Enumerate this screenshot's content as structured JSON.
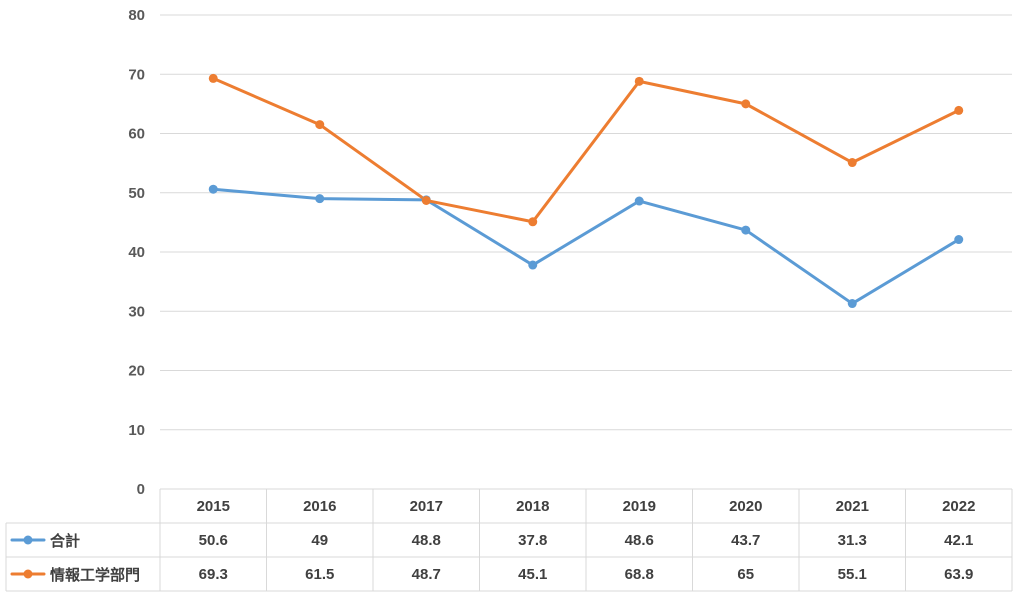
{
  "chart_data": {
    "type": "line",
    "categories": [
      "2015",
      "2016",
      "2017",
      "2018",
      "2019",
      "2020",
      "2021",
      "2022"
    ],
    "series": [
      {
        "name": "合計",
        "color": "#5b9bd5",
        "values": [
          50.6,
          49,
          48.8,
          37.8,
          48.6,
          43.7,
          31.3,
          42.1
        ],
        "labels": [
          "50.6",
          "49",
          "48.8",
          "37.8",
          "48.6",
          "43.7",
          "31.3",
          "42.1"
        ]
      },
      {
        "name": "情報工学部門",
        "color": "#ed7d31",
        "values": [
          69.3,
          61.5,
          48.7,
          45.1,
          68.8,
          65,
          55.1,
          63.9
        ],
        "labels": [
          "69.3",
          "61.5",
          "48.7",
          "45.1",
          "68.8",
          "65",
          "55.1",
          "63.9"
        ]
      }
    ],
    "ylim": [
      0,
      80
    ],
    "yticks": [
      "0",
      "10",
      "20",
      "30",
      "40",
      "50",
      "60",
      "70",
      "80"
    ],
    "grid": true,
    "legend": "data-table",
    "title": "",
    "xlabel": "",
    "ylabel": ""
  }
}
